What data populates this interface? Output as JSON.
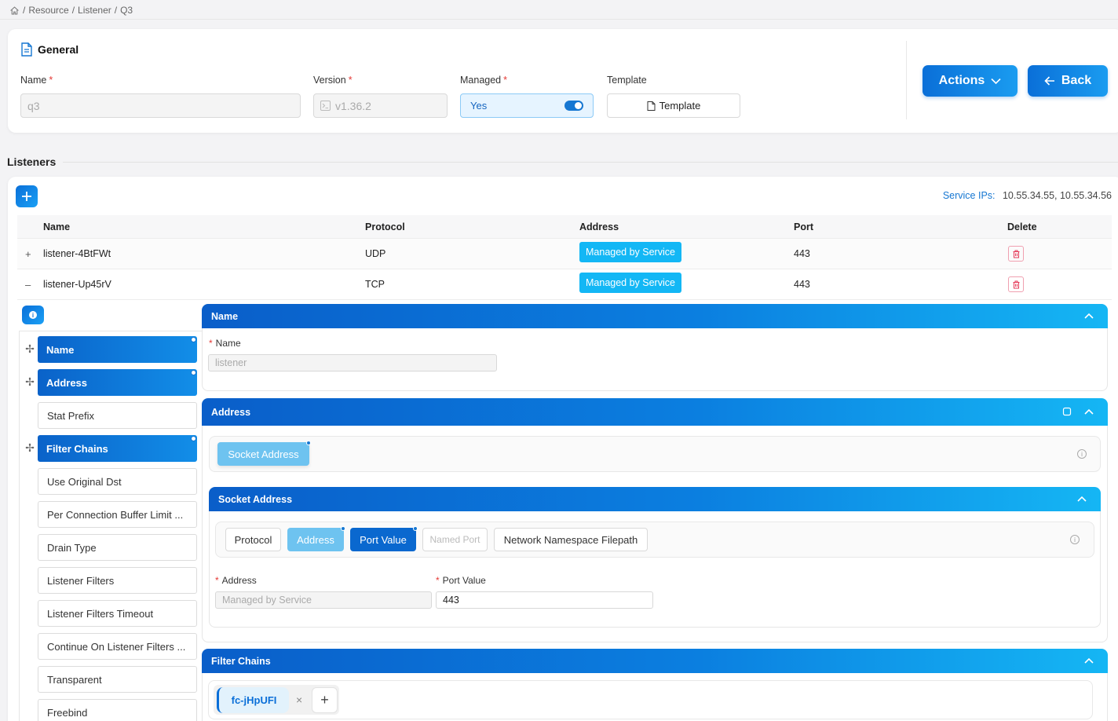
{
  "breadcrumb": {
    "items": [
      "Resource",
      "Listener",
      "Q3"
    ],
    "sep": "/"
  },
  "general": {
    "title": "General",
    "name_label": "Name",
    "name_value": "q3",
    "version_label": "Version",
    "version_value": "v1.36.2",
    "managed_label": "Managed",
    "managed_value": "Yes",
    "template_label": "Template",
    "template_button": "Template",
    "required_mark": "*"
  },
  "actions": {
    "actions_label": "Actions",
    "back_label": "Back"
  },
  "listeners": {
    "title": "Listeners",
    "service_ips_label": "Service IPs:",
    "service_ips_value": "10.55.34.55, 10.55.34.56",
    "columns": [
      "Name",
      "Protocol",
      "Address",
      "Port",
      "Delete"
    ],
    "rows": [
      {
        "toggle": "+",
        "name": "listener-4BtFWt",
        "protocol": "UDP",
        "address": "Managed by Service",
        "port": "443"
      },
      {
        "toggle": "–",
        "name": "listener-Up45rV",
        "protocol": "TCP",
        "address": "Managed by Service",
        "port": "443"
      }
    ]
  },
  "left_nav": {
    "items": [
      {
        "label": "Name",
        "active": true
      },
      {
        "label": "Address",
        "active": true
      },
      {
        "label": "Stat Prefix",
        "active": false
      },
      {
        "label": "Filter Chains",
        "active": true
      },
      {
        "label": "Use Original Dst",
        "active": false
      },
      {
        "label": "Per Connection Buffer Limit ...",
        "active": false
      },
      {
        "label": "Drain Type",
        "active": false
      },
      {
        "label": "Listener Filters",
        "active": false
      },
      {
        "label": "Listener Filters Timeout",
        "active": false
      },
      {
        "label": "Continue On Listener Filters ...",
        "active": false
      },
      {
        "label": "Transparent",
        "active": false
      },
      {
        "label": "Freebind",
        "active": false
      }
    ]
  },
  "name_panel": {
    "title": "Name",
    "field_label": "Name",
    "field_placeholder": "listener"
  },
  "address_panel": {
    "title": "Address",
    "chip": "Socket Address"
  },
  "socket_panel": {
    "title": "Socket Address",
    "chips": [
      "Protocol",
      "Address",
      "Port Value",
      "Named Port",
      "Network Namespace Filepath"
    ],
    "address_label": "Address",
    "address_value": "Managed by Service",
    "port_label": "Port Value",
    "port_value": "443"
  },
  "filter_panel": {
    "title": "Filter Chains",
    "chip": "fc-jHpUFI",
    "close": "×",
    "add": "+"
  },
  "colors": {
    "accent": "#0a6fd8",
    "cyan": "#13b7f5",
    "danger": "#e53935"
  }
}
